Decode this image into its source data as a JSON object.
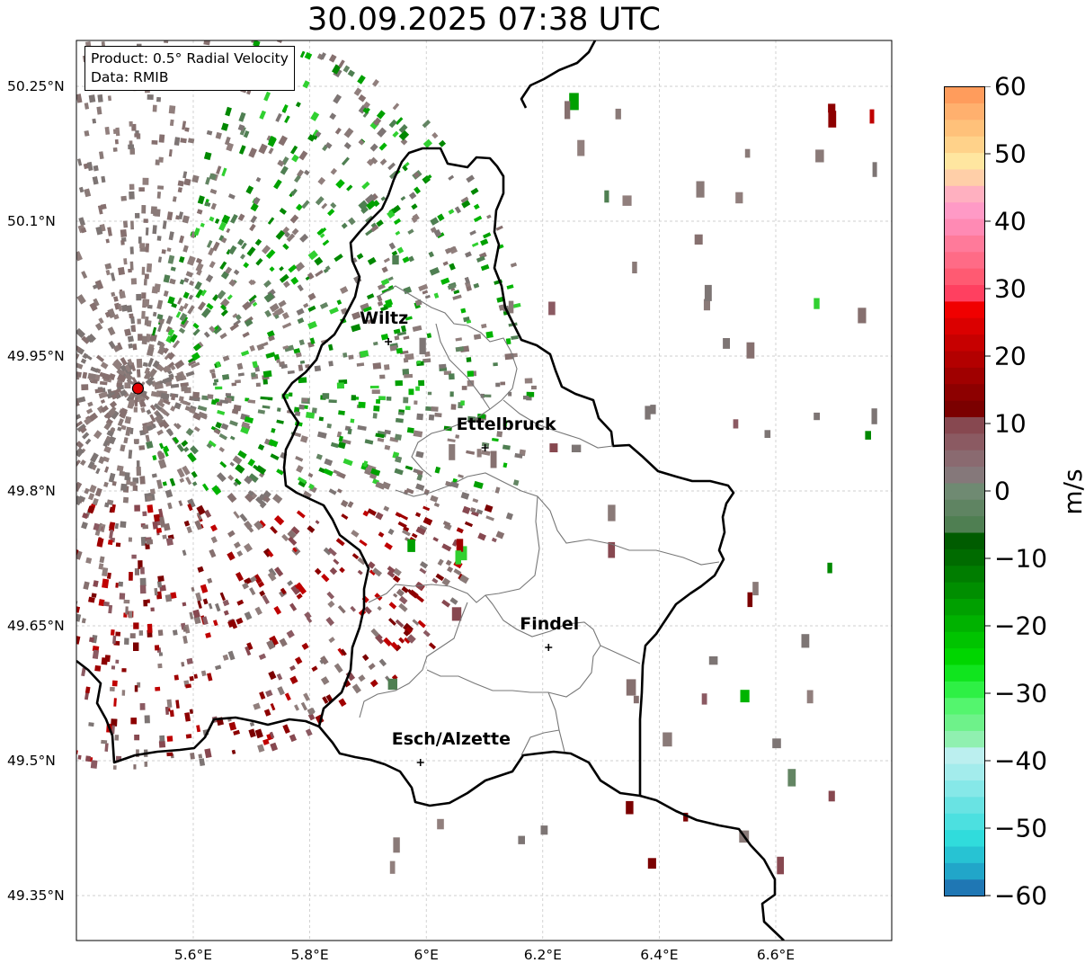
{
  "title": "30.09.2025 07:38 UTC",
  "info_box": {
    "product": "Product: 0.5° Radial Velocity",
    "data": "Data: RMIB"
  },
  "y_ticks": [
    "50.25°N",
    "50.1°N",
    "49.95°N",
    "49.8°N",
    "49.65°N",
    "49.5°N",
    "49.35°N"
  ],
  "x_ticks": [
    "5.6°E",
    "5.8°E",
    "6°E",
    "6.2°E",
    "6.4°E",
    "6.6°E"
  ],
  "cities": [
    {
      "name": "Wiltz",
      "lon": 5.935,
      "lat": 49.966
    },
    {
      "name": "Ettelbruck",
      "lon": 6.101,
      "lat": 49.848
    },
    {
      "name": "Findel",
      "lon": 6.21,
      "lat": 49.626
    },
    {
      "name": "Esch/Alzette",
      "lon": 5.99,
      "lat": 49.498
    }
  ],
  "radar_site": {
    "lon": 5.505,
    "lat": 49.914
  },
  "colorbar": {
    "label": "m/s",
    "min": -60,
    "max": 60,
    "ticks": [
      "60",
      "50",
      "40",
      "30",
      "20",
      "10",
      "0",
      "−10",
      "−20",
      "−30",
      "−40",
      "−50",
      "−60"
    ],
    "colors_bottom_to_top": [
      "#1f77b4",
      "#21a6c9",
      "#27c3d3",
      "#30dcdc",
      "#4ce0e0",
      "#69e3e3",
      "#86e8e8",
      "#a3ecec",
      "#bbefef",
      "#90f0b0",
      "#6ef28a",
      "#54f56e",
      "#2ef045",
      "#10e51e",
      "#00d600",
      "#00c400",
      "#00b200",
      "#00a000",
      "#008e00",
      "#007d00",
      "#006b00",
      "#005c00",
      "#4f7f52",
      "#5f8462",
      "#6f8a72",
      "#85787a",
      "#8a6a70",
      "#8b5a62",
      "#874850",
      "#7b0000",
      "#8d0000",
      "#a00000",
      "#b30000",
      "#c70000",
      "#db0000",
      "#f00000",
      "#ff4060",
      "#ff5a72",
      "#ff6b86",
      "#ff7a9a",
      "#ff8ab4",
      "#ff9ac6",
      "#ffb0c0",
      "#ffcfa8",
      "#ffe6a0",
      "#ffd28a",
      "#ffc17a",
      "#ffb06e",
      "#ff9c5c"
    ]
  }
}
